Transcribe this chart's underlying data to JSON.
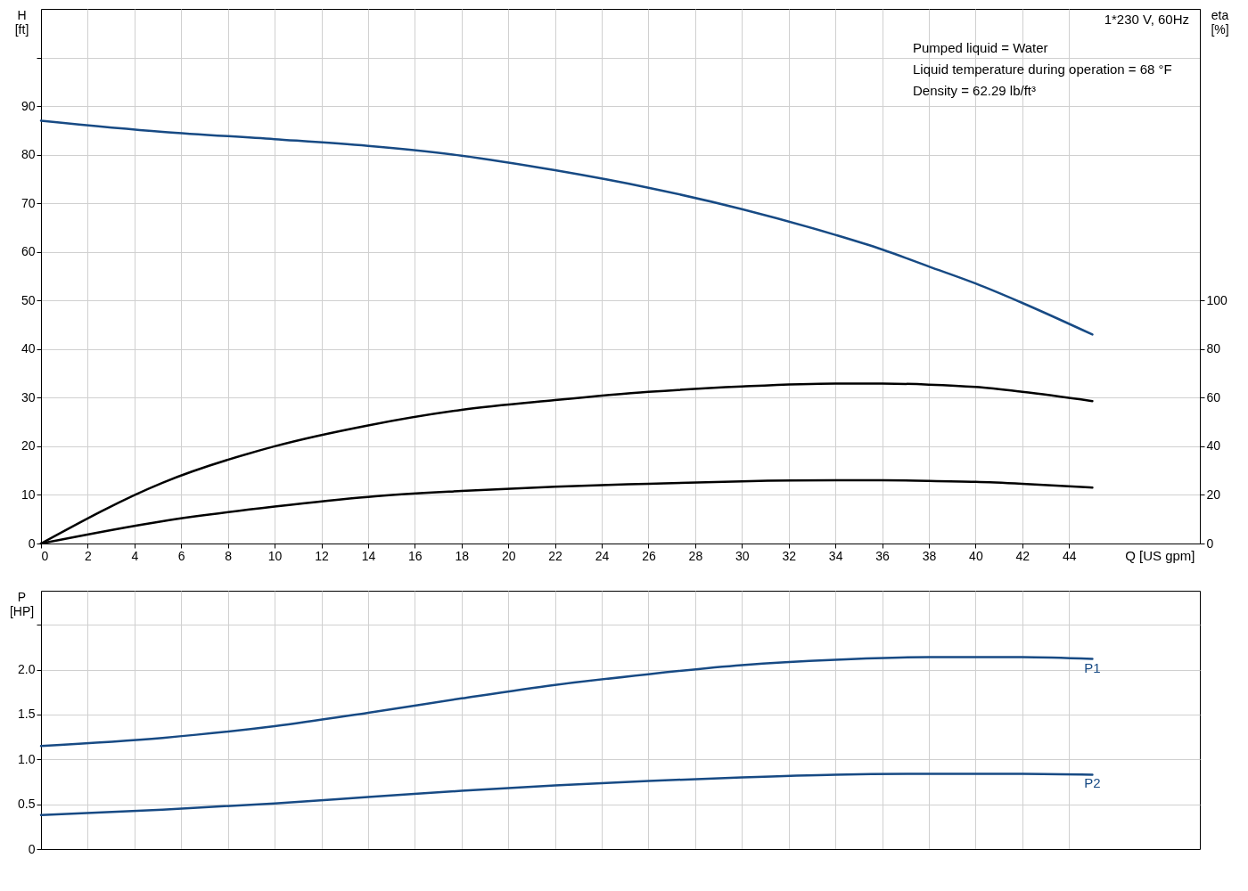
{
  "chart_data": [
    {
      "type": "line",
      "ylabel": "H [ft]",
      "y2label": "eta [%]",
      "xlabel": "Q [US gpm]",
      "x": [
        0,
        5.2,
        10,
        14,
        18,
        22,
        26,
        30,
        34,
        36,
        38,
        40,
        42,
        45
      ],
      "xlim": [
        0,
        49.6
      ],
      "xticks": [
        0,
        2,
        4,
        6,
        8,
        10,
        12,
        14,
        16,
        18,
        20,
        22,
        24,
        26,
        28,
        30,
        32,
        34,
        36,
        38,
        40,
        42,
        44
      ],
      "ylim": [
        0,
        110
      ],
      "yticks": [
        0,
        10,
        20,
        30,
        40,
        50,
        60,
        70,
        80,
        90,
        {
          "value": 100,
          "label": null
        }
      ],
      "y2lim": [
        0,
        220
      ],
      "y2ticks": [
        0,
        20,
        40,
        60,
        80,
        100
      ],
      "series": [
        {
          "color": "#174a84",
          "values": [
            87,
            84.7,
            83.2,
            81.8,
            79.8,
            76.8,
            73.2,
            68.8,
            63.5,
            60.5,
            57,
            53.5,
            49.5,
            43
          ]
        },
        {
          "color": "#000000",
          "axis": "y2",
          "values": [
            0,
            25,
            40,
            48.6,
            55,
            59,
            62.4,
            64.6,
            65.8,
            65.8,
            65.4,
            64.4,
            62.4,
            58.6
          ]
        },
        {
          "color": "#000000",
          "axis": "y2",
          "values": [
            0,
            9.2,
            15.2,
            19.2,
            21.6,
            23.4,
            24.6,
            25.6,
            26,
            26,
            25.8,
            25.4,
            24.6,
            23
          ]
        }
      ],
      "annotations": [
        "1*230 V, 60Hz",
        "Pumped liquid = Water",
        "Liquid temperature during operation = 68 °F",
        "Density = 62.29 lb/ft³"
      ],
      "grid": true,
      "legend": false
    },
    {
      "type": "line",
      "ylabel": "P [HP]",
      "x": [
        0,
        5.2,
        10,
        14,
        18,
        22,
        26,
        30,
        34,
        38,
        42,
        45
      ],
      "xlim": [
        0,
        49.6
      ],
      "xticks": [
        0,
        2,
        4,
        6,
        8,
        10,
        12,
        14,
        16,
        18,
        20,
        22,
        24,
        26,
        28,
        30,
        32,
        34,
        36,
        38,
        40,
        42,
        44
      ],
      "ylim": [
        0,
        2.88
      ],
      "yticks": [
        0,
        {
          "value": 0.5,
          "label": "0.5"
        },
        {
          "value": 1,
          "label": "1.0"
        },
        {
          "value": 1.5,
          "label": "1.5"
        },
        {
          "value": 2,
          "label": "2.0"
        },
        {
          "value": 2.5,
          "label": null
        }
      ],
      "tick_labels": "y",
      "series": [
        {
          "name": "P1",
          "color": "#174a84",
          "values": [
            1.15,
            1.24,
            1.37,
            1.52,
            1.68,
            1.83,
            1.95,
            2.05,
            2.11,
            2.14,
            2.14,
            2.12
          ]
        },
        {
          "name": "P2",
          "color": "#174a84",
          "values": [
            0.38,
            0.44,
            0.51,
            0.58,
            0.65,
            0.71,
            0.76,
            0.8,
            0.83,
            0.84,
            0.84,
            0.83
          ]
        }
      ],
      "grid": true,
      "legend": false
    }
  ]
}
